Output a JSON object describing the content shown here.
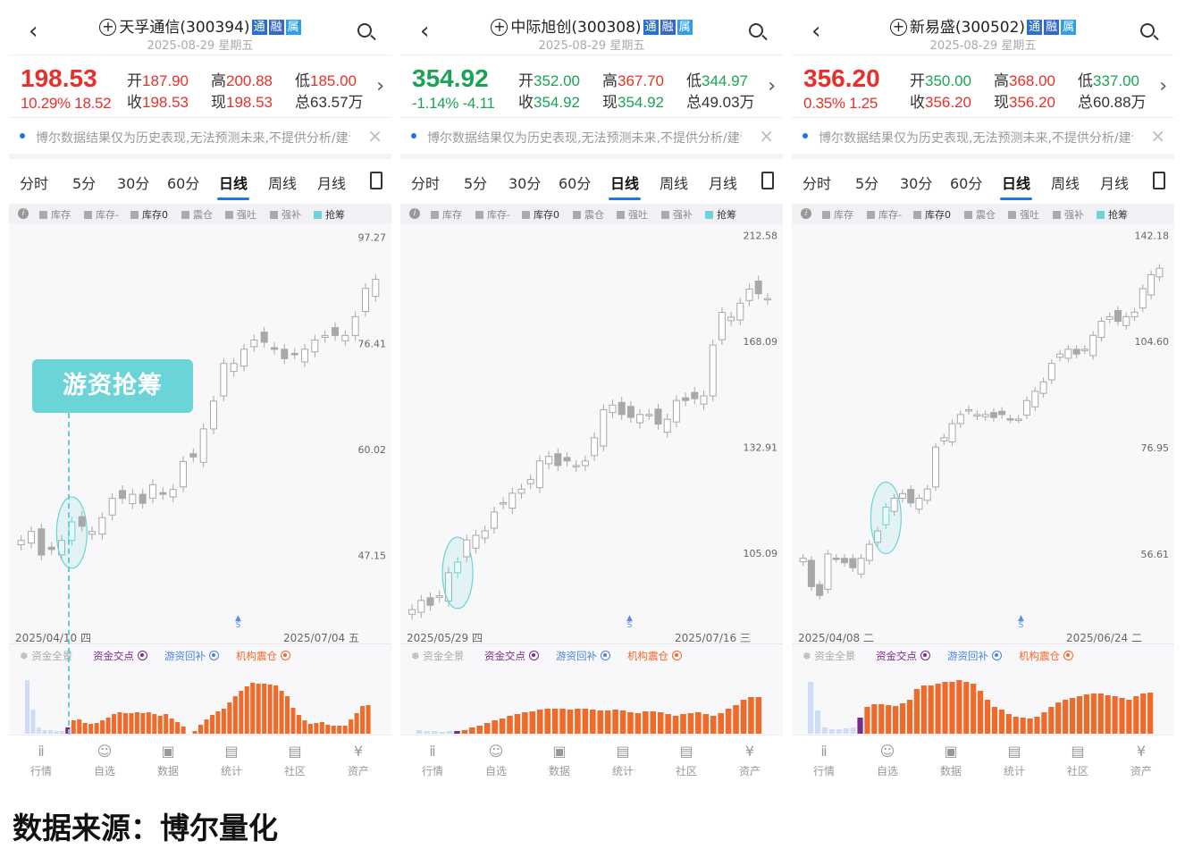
{
  "colors": {
    "up": "#e8302a",
    "down": "#1aa355",
    "accent": "#1e74e8",
    "highlight": "#6ad4d8",
    "candle": "#b3b3b3",
    "bar_orange": "#f06a2a",
    "bar_light": "#cfdcf6",
    "bar_purple": "#7b2a8a"
  },
  "caption": "数据来源：博尔量化",
  "tag_label": "游资抢筹",
  "panels": [
    {
      "name": "天孚通信",
      "code": "(300394)",
      "badges": [
        "通",
        "融",
        "属"
      ],
      "date": "2025-08-29",
      "weekday": "星期五",
      "price": "198.53",
      "price_color": "#e8302a",
      "pct": "10.29%",
      "chg": "18.52",
      "fields": [
        {
          "k": "开",
          "v": "187.90",
          "c": "#e8302a"
        },
        {
          "k": "高",
          "v": "200.88",
          "c": "#e8302a"
        },
        {
          "k": "低",
          "v": "185.00",
          "c": "#e8302a"
        },
        {
          "k": "收",
          "v": "198.53",
          "c": "#e8302a"
        },
        {
          "k": "现",
          "v": "198.53",
          "c": "#e8302a"
        },
        {
          "k": "总",
          "v": "63.57万",
          "c": "#333333"
        }
      ],
      "notice": "博尔数据结果仅为历史表现,无法预测未来,不提供分析/建议",
      "tabs": [
        "分时",
        "5分",
        "30分",
        "60分",
        "日线",
        "周线",
        "月线"
      ],
      "active_tab": "日线",
      "legend": [
        "库存",
        "库存-",
        "库存0",
        "震仓",
        "强吐",
        "强补",
        "抢筹"
      ],
      "funds_legend": {
        "all": "资金全景",
        "cross": "资金交点",
        "hot": "游资回补",
        "inst": "机构震仓"
      },
      "nav": [
        "行情",
        "自选",
        "数据",
        "统计",
        "社区",
        "资产"
      ],
      "x_labels": [
        "2025/04/10 四",
        "2025/07/04 五"
      ],
      "s_marker": "S",
      "chart_data": {
        "type": "candlestick",
        "y_scale": "log",
        "ylim": [
          38.6,
          100.4
        ],
        "y_ticks": [
          "97.27",
          "76.41",
          "60.02",
          "47.15"
        ],
        "highlight_index": 5,
        "closes": [
          48.8,
          49.8,
          47.2,
          47.8,
          48.8,
          50.9,
          50.4,
          49.8,
          51.4,
          53.7,
          53.7,
          54.2,
          53.1,
          55.4,
          54.2,
          54.8,
          58.4,
          59.0,
          62.9,
          67.0,
          73.0,
          73.0,
          75.4,
          77.0,
          76.6,
          75.4,
          73.8,
          74.6,
          75.4,
          77.0,
          77.8,
          77.8,
          77.8,
          81.2,
          86.6,
          88.4
        ]
      },
      "bars": {
        "light": [
          60,
          27,
          7,
          4,
          4,
          3,
          3
        ],
        "purple": [
          7
        ],
        "orange": [
          15,
          16,
          12,
          11,
          12,
          15,
          18,
          22,
          24,
          23,
          23,
          24,
          23,
          24,
          22,
          20,
          22,
          17,
          13,
          8,
          0,
          3,
          10,
          16,
          21,
          25,
          28,
          35,
          42,
          48,
          53,
          57,
          56,
          56,
          55,
          54,
          48,
          42,
          29,
          21,
          15,
          11,
          12,
          13,
          10,
          9,
          9,
          9,
          16,
          23,
          31,
          32
        ]
      }
    },
    {
      "name": "中际旭创",
      "code": "(300308)",
      "badges": [
        "通",
        "融",
        "属"
      ],
      "date": "2025-08-29",
      "weekday": "星期五",
      "price": "354.92",
      "price_color": "#1aa355",
      "pct": "-1.14%",
      "chg": "-4.11",
      "fields": [
        {
          "k": "开",
          "v": "352.00",
          "c": "#1aa355"
        },
        {
          "k": "高",
          "v": "367.70",
          "c": "#e8302a"
        },
        {
          "k": "低",
          "v": "344.97",
          "c": "#1aa355"
        },
        {
          "k": "收",
          "v": "354.92",
          "c": "#1aa355"
        },
        {
          "k": "现",
          "v": "354.92",
          "c": "#1aa355"
        },
        {
          "k": "总",
          "v": "49.03万",
          "c": "#333333"
        }
      ],
      "notice": "博尔数据结果仅为历史表现,无法预测未来,不提供分析/建议",
      "tabs": [
        "分时",
        "5分",
        "30分",
        "60分",
        "日线",
        "周线",
        "月线"
      ],
      "active_tab": "日线",
      "legend": [
        "库存",
        "库存-",
        "库存0",
        "震仓",
        "强吐",
        "强补",
        "抢筹"
      ],
      "funds_legend": {
        "all": "资金全景",
        "cross": "资金交点",
        "hot": "游资回补",
        "inst": "机构震仓"
      },
      "nav": [
        "行情",
        "自选",
        "数据",
        "统计",
        "社区",
        "资产"
      ],
      "x_labels": [
        "2025/05/29 四",
        "2025/07/16 三"
      ],
      "s_marker": "S",
      "chart_data": {
        "type": "candlestick",
        "y_scale": "log",
        "ylim": [
          86.0,
          218.3
        ],
        "y_ticks": [
          "212.58",
          "168.09",
          "132.91",
          "105.09"
        ],
        "highlight_index": 5,
        "closes": [
          92.7,
          94.6,
          93.6,
          95.6,
          100.6,
          103.0,
          108.2,
          109.3,
          110.4,
          115.1,
          117.5,
          120.0,
          121.1,
          123.7,
          128.9,
          130.2,
          127.6,
          128.9,
          127.6,
          128.9,
          135.7,
          144.4,
          145.9,
          142.9,
          142.0,
          142.9,
          142.9,
          139.9,
          141.4,
          147.4,
          147.4,
          148.0,
          148.9,
          166.7,
          179.2,
          177.3,
          182.9,
          188.7,
          186.8,
          184.8
        ]
      },
      "bars": {
        "light": [
          4,
          3,
          3,
          2,
          3
        ],
        "purple": [
          3
        ],
        "orange": [
          4,
          7,
          9,
          12,
          15,
          17,
          20,
          22,
          24,
          25,
          27,
          28,
          28,
          28,
          27,
          28,
          28,
          27,
          26,
          26,
          27,
          26,
          24,
          23,
          25,
          25,
          24,
          22,
          20,
          22,
          23,
          24,
          22,
          20,
          23,
          28,
          32,
          38,
          41,
          41
        ]
      }
    },
    {
      "name": "新易盛",
      "code": "(300502)",
      "badges": [
        "通",
        "融",
        "属"
      ],
      "date": "2025-08-29",
      "weekday": "星期五",
      "price": "356.20",
      "price_color": "#e8302a",
      "pct": "0.35%",
      "chg": "1.25",
      "fields": [
        {
          "k": "开",
          "v": "350.00",
          "c": "#1aa355"
        },
        {
          "k": "高",
          "v": "368.00",
          "c": "#e8302a"
        },
        {
          "k": "低",
          "v": "337.00",
          "c": "#1aa355"
        },
        {
          "k": "收",
          "v": "356.20",
          "c": "#e8302a"
        },
        {
          "k": "现",
          "v": "356.20",
          "c": "#e8302a"
        },
        {
          "k": "总",
          "v": "60.88万",
          "c": "#333333"
        }
      ],
      "notice": "博尔数据结果仅为历史表现,无法预测未来,不提供分析/建议",
      "tabs": [
        "分时",
        "5分",
        "30分",
        "60分",
        "日线",
        "周线",
        "月线"
      ],
      "active_tab": "日线",
      "legend": [
        "库存",
        "库存-",
        "库存0",
        "震仓",
        "强吐",
        "强补",
        "抢筹"
      ],
      "funds_legend": {
        "all": "资金全景",
        "cross": "资金交点",
        "hot": "游资回补",
        "inst": "机构震仓"
      },
      "nav": [
        "行情",
        "自选",
        "数据",
        "统计",
        "社区",
        "资产"
      ],
      "x_labels": [
        "2025/04/08 二",
        "2025/06/24 二"
      ],
      "s_marker": "S",
      "chart_data": {
        "type": "candlestick",
        "y_scale": "log",
        "ylim": [
          43.7,
          147.2
        ],
        "y_ticks": [
          "142.18",
          "104.60",
          "76.95",
          "56.61"
        ],
        "highlight_index": 10,
        "closes": [
          55.9,
          51.5,
          50.2,
          56.6,
          55.9,
          55.2,
          54.4,
          55.9,
          58.2,
          60.5,
          64.8,
          66.5,
          67.4,
          65.6,
          66.5,
          68.3,
          77.1,
          79.2,
          82.5,
          84.7,
          85.9,
          84.7,
          84.7,
          84.0,
          84.7,
          83.6,
          83.6,
          88.2,
          90.6,
          93.1,
          98.2,
          100.9,
          102.3,
          100.9,
          102.3,
          106.5,
          110.9,
          112.4,
          110.9,
          112.4,
          113.9,
          121.9,
          126.9,
          129.3
        ]
      },
      "bars": {
        "light": [
          58,
          26,
          7,
          5,
          5,
          6,
          7
        ],
        "purple": [
          18
        ],
        "orange": [
          30,
          33,
          33,
          32,
          31,
          34,
          38,
          50,
          54,
          54,
          56,
          58,
          58,
          60,
          58,
          56,
          48,
          38,
          30,
          27,
          22,
          19,
          18,
          17,
          19,
          24,
          30,
          35,
          38,
          40,
          42,
          44,
          45,
          45,
          43,
          42,
          40,
          38,
          42,
          45,
          46
        ]
      }
    }
  ]
}
